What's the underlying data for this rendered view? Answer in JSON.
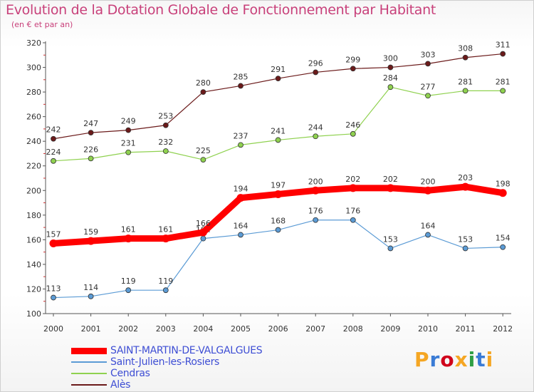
{
  "header": {
    "title": "Evolution de la Dotation Globale de Fonctionnement par Habitant",
    "subtitle": "(en € et par an)"
  },
  "chart_data": {
    "type": "line",
    "x": [
      "2000",
      "2001",
      "2002",
      "2003",
      "2004",
      "2005",
      "2006",
      "2007",
      "2008",
      "2009",
      "2010",
      "2011",
      "2012"
    ],
    "ylim": [
      100,
      320
    ],
    "yticks": [
      "100",
      "120",
      "140",
      "160",
      "180",
      "200",
      "220",
      "240",
      "260",
      "280",
      "300",
      "320"
    ],
    "grid": false,
    "legend_position": "bottom-left",
    "series": [
      {
        "name": "SAINT-MARTIN-DE-VALGALGUES",
        "color": "#ff0000",
        "values": [
          157,
          159,
          161,
          161,
          166,
          194,
          197,
          200,
          202,
          202,
          200,
          203,
          198
        ]
      },
      {
        "name": "Saint-Julien-les-Rosiers",
        "color": "#5b9bd5",
        "values": [
          113,
          114,
          119,
          119,
          161,
          164,
          168,
          176,
          176,
          153,
          164,
          153,
          154
        ]
      },
      {
        "name": "Cendras",
        "color": "#8fd14f",
        "values": [
          224,
          226,
          231,
          232,
          225,
          237,
          241,
          244,
          246,
          284,
          277,
          281,
          281
        ]
      },
      {
        "name": "Alès",
        "color": "#6b1a1a",
        "values": [
          242,
          247,
          249,
          253,
          280,
          285,
          291,
          296,
          299,
          300,
          303,
          308,
          311
        ]
      }
    ]
  },
  "logo": {
    "text": "Proxiti",
    "colors": [
      "#f5a623",
      "#3a7bd5",
      "#d0021b",
      "#f5a623",
      "#2e9e44",
      "#3a7bd5",
      "#f5a623"
    ]
  }
}
